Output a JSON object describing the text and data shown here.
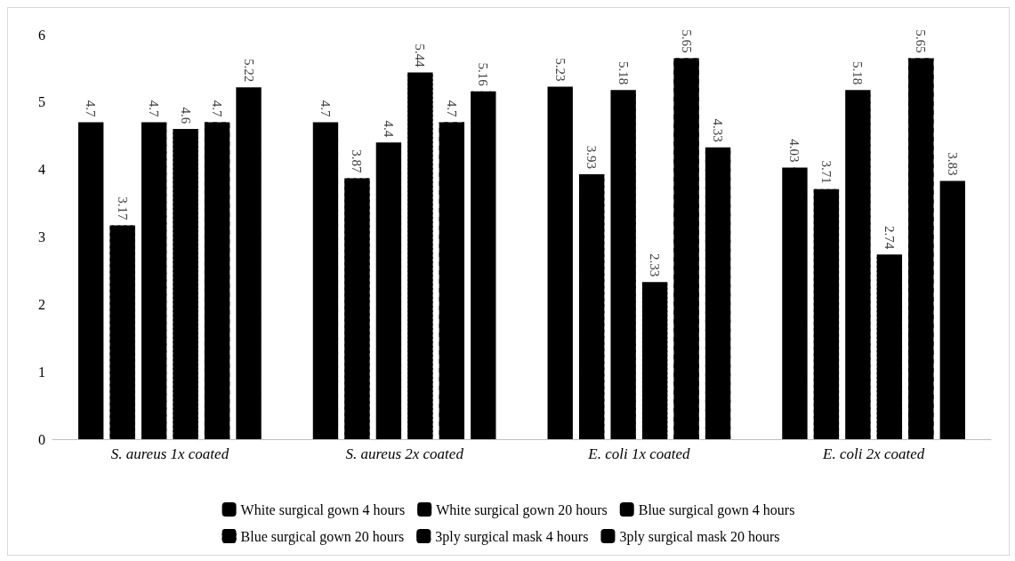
{
  "chart_data": {
    "type": "bar",
    "categories": [
      "S. aureus 1x coated",
      "S. aureus 2x coated",
      "E. coli 1x coated",
      "E. coli 2x coated"
    ],
    "series": [
      {
        "name": "White surgical gown 4 hours",
        "color": "#000000",
        "values": [
          4.7,
          4.7,
          5.23,
          4.03
        ]
      },
      {
        "name": "White surgical gown 20 hours",
        "color": "#000000",
        "values": [
          3.17,
          3.87,
          3.93,
          3.71
        ]
      },
      {
        "name": "Blue surgical gown 4 hours",
        "color": "#000000",
        "values": [
          4.7,
          4.4,
          5.18,
          5.18
        ]
      },
      {
        "name": "Blue surgical gown 20 hours",
        "color": "#000000",
        "values": [
          4.6,
          5.44,
          2.33,
          2.74
        ]
      },
      {
        "name": "3ply surgical mask 4 hours",
        "color": "#000000",
        "values": [
          4.7,
          4.7,
          5.65,
          5.65
        ]
      },
      {
        "name": "3ply surgical mask 20 hours",
        "color": "#000000",
        "values": [
          5.22,
          5.16,
          4.33,
          3.83
        ]
      }
    ],
    "ylim": [
      0,
      6
    ],
    "yticks": [
      0,
      1,
      2,
      3,
      4,
      5,
      6
    ],
    "grid": false,
    "legend": "bottom",
    "data_labels": true
  }
}
